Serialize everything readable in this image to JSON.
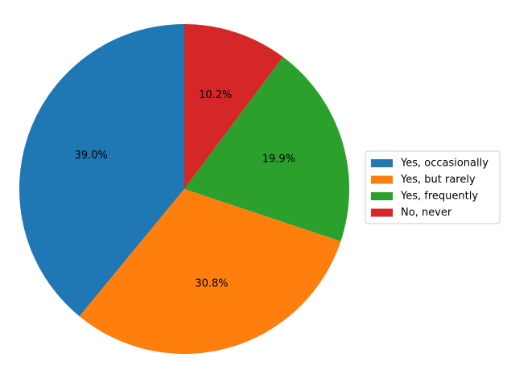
{
  "chart_data": {
    "type": "pie",
    "labels": [
      "Yes, occasionally",
      "Yes, but rarely",
      "Yes, frequently",
      "No, never"
    ],
    "values": [
      39.0,
      30.8,
      19.9,
      10.2
    ],
    "value_labels": [
      "39.0%",
      "30.8%",
      "19.9%",
      "10.2%"
    ],
    "colors": [
      "#1f77b4",
      "#ff7f0e",
      "#2ca02c",
      "#d62728"
    ],
    "start_angle_deg": 90,
    "direction": "counterclockwise",
    "legend": {
      "placement": "center-right",
      "entries": [
        "Yes, occasionally",
        "Yes, but rarely",
        "Yes, frequently",
        "No, never"
      ]
    },
    "title": ""
  }
}
